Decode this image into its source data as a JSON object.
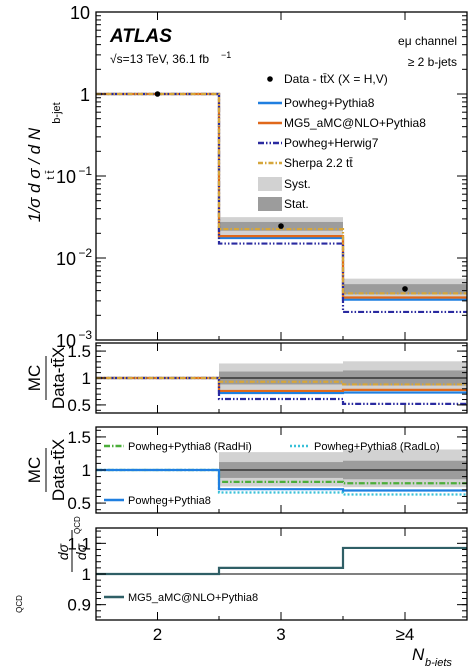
{
  "chart_data": [
    {
      "panel": "main",
      "type": "line",
      "x_categories": [
        "2",
        "3",
        "≥4"
      ],
      "ylabel_main": "1/σ d σ / d N",
      "ylabel_sub_main": "t t̄",
      "ylabel_sub_den": "b-jet",
      "y_scale": "log",
      "ylim": [
        0.001,
        10
      ],
      "y_ticks": [
        {
          "v": 10,
          "base": "10",
          "exp": ""
        },
        {
          "v": 1,
          "base": "1",
          "exp": ""
        },
        {
          "v": 0.1,
          "base": "10",
          "exp": "−1"
        },
        {
          "v": 0.01,
          "base": "10",
          "exp": "−2"
        },
        {
          "v": 0.001,
          "base": "10",
          "exp": "−3"
        }
      ],
      "atlas_label": "ATLAS",
      "energy_label": "√s=13 TeV, 36.1 fb",
      "energy_label_sup": "−1",
      "channel_label": "eμ channel",
      "jets_label": "≥ 2 b-jets",
      "data": {
        "name": "Data - tt̄X (X = H,V)",
        "values": [
          1.0,
          0.0245,
          0.0042
        ]
      },
      "bands": {
        "syst_lo": [
          1.0,
          0.0185,
          0.0031
        ],
        "syst_hi": [
          1.0,
          0.0315,
          0.0056
        ],
        "stat_lo": [
          1.0,
          0.0215,
          0.0036
        ],
        "stat_hi": [
          1.0,
          0.0275,
          0.0048
        ]
      },
      "series": [
        {
          "name": "Powheg+Pythia8",
          "color": "#1f7fe0",
          "dash": "",
          "values": [
            1.0,
            0.0175,
            0.0031
          ]
        },
        {
          "name": "MG5_aMC@NLO+Pythia8",
          "color": "#e0681a",
          "dash": "",
          "values": [
            1.0,
            0.0185,
            0.0033
          ]
        },
        {
          "name": "Powheg+Herwig7",
          "color": "#2a2aa0",
          "dash": "6,2,1.5,2,1.5,2",
          "values": [
            1.0,
            0.015,
            0.0022
          ]
        },
        {
          "name": "Sherpa 2.2 tt̄",
          "color": "#d6a63a",
          "dash": "5,2,1.5,2",
          "values": [
            1.0,
            0.0225,
            0.0037
          ]
        }
      ],
      "legend": {
        "data": "Data - tt̄X (X = H,V)",
        "syst": "Syst.",
        "stat": "Stat."
      }
    },
    {
      "panel": "ratio1",
      "type": "line",
      "ylabel_top": "MC",
      "ylabel_bottom": "Data-tt̄X",
      "ylim": [
        0.35,
        1.65
      ],
      "y_ticks": [
        0.5,
        1,
        1.5
      ],
      "bands": {
        "syst_lo": [
          1.0,
          0.75,
          0.74
        ],
        "syst_hi": [
          1.0,
          1.27,
          1.31
        ],
        "stat_lo": [
          1.0,
          0.88,
          0.86
        ],
        "stat_hi": [
          1.0,
          1.12,
          1.14
        ]
      },
      "series": [
        {
          "name": "Powheg+Pythia8",
          "color": "#1f7fe0",
          "dash": "",
          "values": [
            1.0,
            0.72,
            0.73
          ]
        },
        {
          "name": "MG5_aMC@NLO+Pythia8",
          "color": "#e0681a",
          "dash": "",
          "values": [
            1.0,
            0.76,
            0.78
          ]
        },
        {
          "name": "Powheg+Herwig7",
          "color": "#2a2aa0",
          "dash": "6,2,1.5,2,1.5,2",
          "values": [
            1.0,
            0.61,
            0.52
          ]
        },
        {
          "name": "Sherpa 2.2 tt̄",
          "color": "#d6a63a",
          "dash": "5,2,1.5,2",
          "values": [
            1.0,
            0.93,
            0.88
          ]
        }
      ]
    },
    {
      "panel": "ratio2",
      "type": "line",
      "ylabel_top": "MC",
      "ylabel_bottom": "Data-tt̄X",
      "ylim": [
        0.35,
        1.65
      ],
      "y_ticks": [
        0.5,
        1,
        1.5
      ],
      "bands": {
        "syst_lo": [
          1.0,
          0.75,
          0.74
        ],
        "syst_hi": [
          1.0,
          1.27,
          1.31
        ],
        "stat_lo": [
          1.0,
          0.88,
          0.86
        ],
        "stat_hi": [
          1.0,
          1.12,
          1.14
        ]
      },
      "series": [
        {
          "name": "Powheg+Pythia8 (RadHi)",
          "color": "#4cae3a",
          "dash": "6,2,1.5,2",
          "values": [
            1.0,
            0.82,
            0.8
          ]
        },
        {
          "name": "Powheg+Pythia8 (RadLo)",
          "color": "#38c0d8",
          "dash": "2,2",
          "values": [
            1.0,
            0.66,
            0.63
          ]
        },
        {
          "name": "Powheg+Pythia8",
          "color": "#1f7fe0",
          "dash": "",
          "values": [
            1.0,
            0.71,
            0.69
          ]
        }
      ]
    },
    {
      "panel": "ratio3",
      "type": "line",
      "ylabel_top_num": "dσ",
      "ylabel_top_den": "dσ",
      "ylabel_top_sup": "QCD",
      "ylabel_left_sup": "QCD",
      "ylim": [
        0.85,
        1.15
      ],
      "y_ticks": [
        0.9,
        1,
        1.1
      ],
      "series": [
        {
          "name": "MG5_aMC@NLO+Pythia8",
          "color": "#2f5f66",
          "dash": "",
          "values": [
            1.0,
            1.02,
            1.085
          ]
        }
      ],
      "xlabel": "N",
      "xlabel_sub": "b-jets"
    }
  ]
}
